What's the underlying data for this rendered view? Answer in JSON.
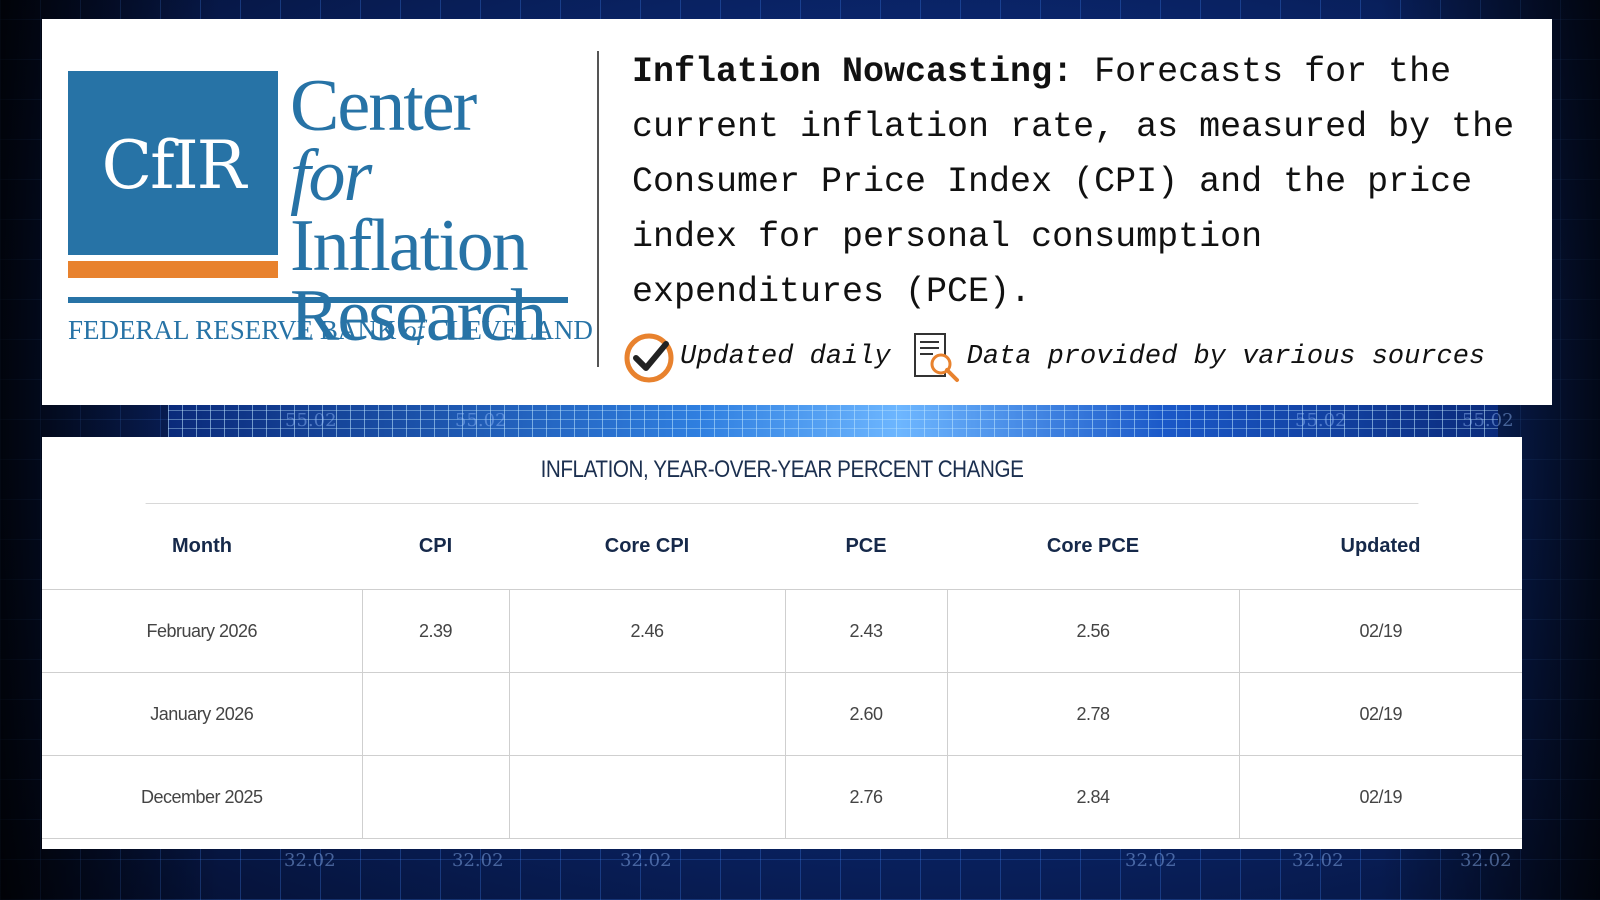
{
  "brand": {
    "logo_mark": "CfIR",
    "name_line1": "Center",
    "name_for": "for",
    "name_line2": "Inflation",
    "name_line3": "Research",
    "org_pre": "FEDERAL RESERVE BANK",
    "org_of": "of",
    "org_post": "CLEVELAND",
    "colors": {
      "blue": "#2773a6",
      "orange": "#e8822e"
    }
  },
  "description": {
    "bold_lead": "Inflation Nowcasting:",
    "text": "Forecasts for the current inflation rate, as measured by the Consumer Price Index (CPI) and the price index for personal consumption expenditures (PCE)."
  },
  "badges": [
    {
      "icon": "clock-check-icon",
      "label": "Updated daily"
    },
    {
      "icon": "document-search-icon",
      "label": "Data provided by various sources"
    }
  ],
  "table": {
    "title": "INFLATION, YEAR-OVER-YEAR PERCENT CHANGE",
    "columns": [
      "Month",
      "CPI",
      "Core CPI",
      "PCE",
      "Core PCE",
      "Updated"
    ],
    "rows": [
      [
        "February 2026",
        "2.39",
        "2.46",
        "2.43",
        "2.56",
        "02/19"
      ],
      [
        "January 2026",
        "",
        "",
        "2.60",
        "2.78",
        "02/19"
      ],
      [
        "December 2025",
        "",
        "",
        "2.76",
        "2.84",
        "02/19"
      ]
    ]
  },
  "background_numbers": [
    "55.02",
    "55.02",
    "55.02",
    "55.02",
    "32.02",
    "32.02",
    "32.02",
    "32.02",
    "32.02",
    "32.02"
  ]
}
